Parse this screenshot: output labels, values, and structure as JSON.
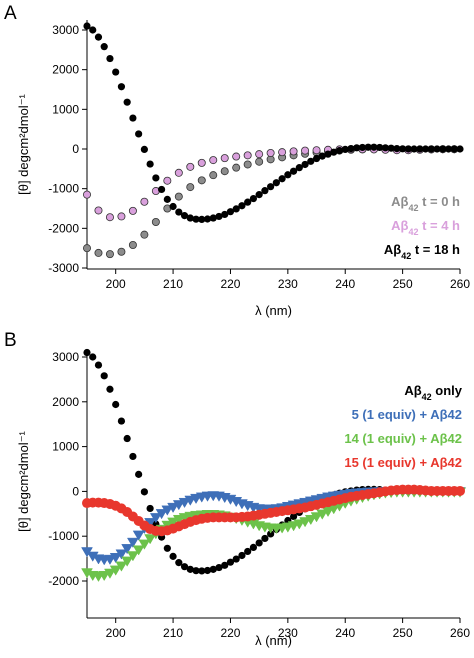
{
  "figure": {
    "panel_letters": [
      "A",
      "B"
    ]
  },
  "chart_data": [
    {
      "type": "scatter",
      "panel": "A",
      "title": "",
      "xlabel": "λ (nm)",
      "ylabel": "[θ] degcm²dmol⁻¹",
      "xlim": [
        195,
        260
      ],
      "ylim": [
        -3000,
        3500
      ],
      "xticks": [
        200,
        210,
        220,
        230,
        240,
        250,
        260
      ],
      "yticks": [
        -3000,
        -2000,
        -1000,
        0,
        1000,
        2000,
        3000
      ],
      "grid": false,
      "legend_position": "bottom-right",
      "series": [
        {
          "name": "Aβ42 t = 0 h",
          "legend_main": "Aβ",
          "legend_sub": "42",
          "legend_rest": " t = 0 h",
          "color": "#8c8c8c",
          "marker": "circle",
          "hollow_edge": true,
          "x": [
            195,
            197,
            199,
            201,
            203,
            205,
            207,
            209,
            211,
            213,
            215,
            217,
            219,
            221,
            223,
            225,
            227,
            229,
            231,
            233,
            235,
            237,
            239,
            241,
            243,
            245,
            247,
            249,
            251,
            253,
            255,
            257,
            259
          ],
          "y": [
            -2500,
            -2620,
            -2650,
            -2590,
            -2420,
            -2160,
            -1840,
            -1500,
            -1200,
            -960,
            -790,
            -660,
            -560,
            -470,
            -390,
            -320,
            -260,
            -210,
            -160,
            -120,
            -90,
            -60,
            -40,
            -20,
            -10,
            -5,
            -5,
            -8,
            -10,
            -10,
            -8,
            -5,
            -5
          ]
        },
        {
          "name": "Aβ42 t = 4 h",
          "legend_main": "Aβ",
          "legend_sub": "42",
          "legend_rest": " t = 4 h",
          "color": "#d9a0dc",
          "marker": "circle",
          "hollow_edge": true,
          "x": [
            195,
            197,
            199,
            201,
            203,
            205,
            207,
            209,
            211,
            213,
            215,
            217,
            219,
            221,
            223,
            225,
            227,
            229,
            231,
            233,
            235,
            237,
            239,
            241,
            243,
            245,
            247,
            249,
            251,
            253,
            255,
            257,
            259
          ],
          "y": [
            -1150,
            -1550,
            -1720,
            -1700,
            -1560,
            -1330,
            -1060,
            -800,
            -600,
            -450,
            -350,
            -280,
            -230,
            -190,
            -160,
            -130,
            -100,
            -80,
            -60,
            -40,
            -30,
            -20,
            -10,
            -5,
            -5,
            -10,
            -20,
            -30,
            -30,
            -20,
            -10,
            -5,
            -5
          ]
        },
        {
          "name": "Aβ42 t = 18 h",
          "legend_main": "Aβ",
          "legend_sub": "42",
          "legend_rest": " t = 18 h",
          "color": "#000000",
          "marker": "circle",
          "hollow_edge": false,
          "x": [
            195,
            196,
            197,
            198,
            199,
            200,
            201,
            202,
            203,
            204,
            205,
            206,
            207,
            208,
            209,
            210,
            211,
            212,
            213,
            214,
            215,
            216,
            217,
            218,
            219,
            220,
            221,
            222,
            223,
            224,
            225,
            226,
            227,
            228,
            229,
            230,
            231,
            232,
            233,
            234,
            235,
            236,
            237,
            238,
            239,
            240,
            241,
            242,
            243,
            244,
            245,
            246,
            247,
            248,
            249,
            250,
            251,
            252,
            253,
            254,
            255,
            256,
            257,
            258,
            259,
            260
          ],
          "y": [
            3100,
            3000,
            2820,
            2580,
            2280,
            1940,
            1570,
            1180,
            780,
            380,
            -10,
            -380,
            -730,
            -1020,
            -1270,
            -1450,
            -1590,
            -1680,
            -1740,
            -1770,
            -1775,
            -1765,
            -1740,
            -1700,
            -1650,
            -1580,
            -1510,
            -1430,
            -1340,
            -1250,
            -1150,
            -1050,
            -950,
            -850,
            -750,
            -650,
            -560,
            -470,
            -390,
            -310,
            -240,
            -180,
            -130,
            -80,
            -40,
            -10,
            10,
            30,
            40,
            45,
            45,
            40,
            30,
            20,
            10,
            5,
            0,
            0,
            0,
            0,
            0,
            0,
            0,
            0,
            0,
            0
          ]
        }
      ]
    },
    {
      "type": "scatter",
      "panel": "B",
      "title": "",
      "xlabel": "λ (nm)",
      "ylabel": "[θ] degcm²dmol⁻¹",
      "xlim": [
        195,
        260
      ],
      "ylim": [
        -3000,
        3500
      ],
      "xticks": [
        200,
        210,
        220,
        230,
        240,
        250,
        260
      ],
      "yticks": [
        -2000,
        -1000,
        0,
        1000,
        2000,
        3000
      ],
      "grid": false,
      "legend_position": "top-right",
      "series": [
        {
          "name": "Aβ42 only",
          "legend_main": "Aβ",
          "legend_sub": "42",
          "legend_rest": " only",
          "color": "#000000",
          "marker": "circle",
          "x": [
            195,
            196,
            197,
            198,
            199,
            200,
            201,
            202,
            203,
            204,
            205,
            206,
            207,
            208,
            209,
            210,
            211,
            212,
            213,
            214,
            215,
            216,
            217,
            218,
            219,
            220,
            221,
            222,
            223,
            224,
            225,
            226,
            227,
            228,
            229,
            230,
            231,
            232,
            233,
            234,
            235,
            236,
            237,
            238,
            239,
            240,
            241,
            242,
            243,
            244,
            245,
            246,
            247,
            248,
            249,
            250,
            251,
            252,
            253,
            254,
            255,
            256,
            257,
            258,
            259,
            260
          ],
          "y": [
            3100,
            3000,
            2820,
            2580,
            2280,
            1940,
            1570,
            1180,
            780,
            380,
            -10,
            -380,
            -730,
            -1020,
            -1270,
            -1450,
            -1590,
            -1680,
            -1740,
            -1770,
            -1775,
            -1765,
            -1740,
            -1700,
            -1650,
            -1580,
            -1510,
            -1430,
            -1340,
            -1250,
            -1150,
            -1050,
            -950,
            -850,
            -750,
            -650,
            -560,
            -470,
            -390,
            -310,
            -240,
            -180,
            -130,
            -80,
            -40,
            -10,
            10,
            30,
            40,
            45,
            45,
            40,
            30,
            20,
            10,
            5,
            0,
            0,
            0,
            0,
            0,
            0,
            0,
            0,
            0,
            0
          ]
        },
        {
          "name": "5 (1 equiv) + Aβ42",
          "legend_main": "5 (1 equiv) + Aβ42",
          "color": "#3e6fb8",
          "marker": "triangle-down",
          "x": [
            195,
            196,
            197,
            198,
            199,
            200,
            201,
            202,
            203,
            204,
            205,
            206,
            207,
            208,
            209,
            210,
            211,
            212,
            213,
            214,
            215,
            216,
            217,
            218,
            219,
            220,
            221,
            222,
            223,
            224,
            225,
            226,
            227,
            228,
            229,
            230,
            231,
            232,
            233,
            234,
            235,
            236,
            237,
            238,
            239,
            240,
            241,
            242,
            243,
            244,
            245,
            246,
            247,
            248,
            249,
            250,
            251,
            252,
            253,
            254,
            255,
            256,
            257,
            258,
            259,
            260
          ],
          "y": [
            -1350,
            -1450,
            -1510,
            -1530,
            -1520,
            -1480,
            -1400,
            -1280,
            -1140,
            -980,
            -830,
            -700,
            -590,
            -500,
            -420,
            -360,
            -300,
            -250,
            -200,
            -160,
            -130,
            -110,
            -100,
            -110,
            -140,
            -180,
            -230,
            -280,
            -320,
            -360,
            -390,
            -400,
            -400,
            -390,
            -370,
            -340,
            -310,
            -280,
            -250,
            -220,
            -190,
            -160,
            -130,
            -110,
            -90,
            -70,
            -50,
            -40,
            -30,
            -20,
            -15,
            -10,
            -10,
            -10,
            -10,
            -10,
            -10,
            -10,
            -10,
            -10,
            -10,
            -10,
            -10,
            -10,
            -10,
            -10
          ]
        },
        {
          "name": "14 (1 equiv) + Aβ42",
          "legend_main": "14 (1 equiv) + Aβ42",
          "color": "#6cc24a",
          "marker": "triangle-down",
          "x": [
            195,
            196,
            197,
            198,
            199,
            200,
            201,
            202,
            203,
            204,
            205,
            206,
            207,
            208,
            209,
            210,
            211,
            212,
            213,
            214,
            215,
            216,
            217,
            218,
            219,
            220,
            221,
            222,
            223,
            224,
            225,
            226,
            227,
            228,
            229,
            230,
            231,
            232,
            233,
            234,
            235,
            236,
            237,
            238,
            239,
            240,
            241,
            242,
            243,
            244,
            245,
            246,
            247,
            248,
            249,
            250,
            251,
            252,
            253,
            254,
            255,
            256,
            257,
            258,
            259,
            260
          ],
          "y": [
            -1820,
            -1880,
            -1900,
            -1880,
            -1830,
            -1760,
            -1670,
            -1560,
            -1440,
            -1310,
            -1180,
            -1060,
            -950,
            -850,
            -760,
            -690,
            -630,
            -590,
            -560,
            -540,
            -530,
            -520,
            -520,
            -530,
            -550,
            -580,
            -610,
            -650,
            -690,
            -730,
            -770,
            -800,
            -820,
            -830,
            -820,
            -800,
            -770,
            -730,
            -680,
            -630,
            -570,
            -510,
            -450,
            -390,
            -330,
            -270,
            -220,
            -180,
            -140,
            -110,
            -80,
            -60,
            -40,
            -30,
            -20,
            -20,
            -20,
            -20,
            -20,
            -20,
            -20,
            -20,
            -20,
            -20,
            -20,
            -20
          ]
        },
        {
          "name": "15 (1 equiv) + Aβ42",
          "legend_main": "15 (1 equiv) + Aβ42",
          "color": "#e8372d",
          "marker": "circle",
          "x": [
            195,
            196,
            197,
            198,
            199,
            200,
            201,
            202,
            203,
            204,
            205,
            206,
            207,
            208,
            209,
            210,
            211,
            212,
            213,
            214,
            215,
            216,
            217,
            218,
            219,
            220,
            221,
            222,
            223,
            224,
            225,
            226,
            227,
            228,
            229,
            230,
            231,
            232,
            233,
            234,
            235,
            236,
            237,
            238,
            239,
            240,
            241,
            242,
            243,
            244,
            245,
            246,
            247,
            248,
            249,
            250,
            251,
            252,
            253,
            254,
            255,
            256,
            257,
            258,
            259,
            260
          ],
          "y": [
            -260,
            -250,
            -250,
            -260,
            -280,
            -320,
            -380,
            -460,
            -560,
            -660,
            -760,
            -840,
            -880,
            -890,
            -870,
            -830,
            -780,
            -730,
            -680,
            -640,
            -610,
            -590,
            -580,
            -580,
            -580,
            -580,
            -580,
            -570,
            -560,
            -540,
            -520,
            -500,
            -480,
            -460,
            -440,
            -420,
            -400,
            -380,
            -360,
            -330,
            -300,
            -270,
            -240,
            -210,
            -180,
            -150,
            -120,
            -100,
            -80,
            -60,
            -40,
            -20,
            0,
            20,
            30,
            40,
            40,
            40,
            30,
            20,
            10,
            10,
            10,
            10,
            10,
            10
          ]
        }
      ]
    }
  ]
}
